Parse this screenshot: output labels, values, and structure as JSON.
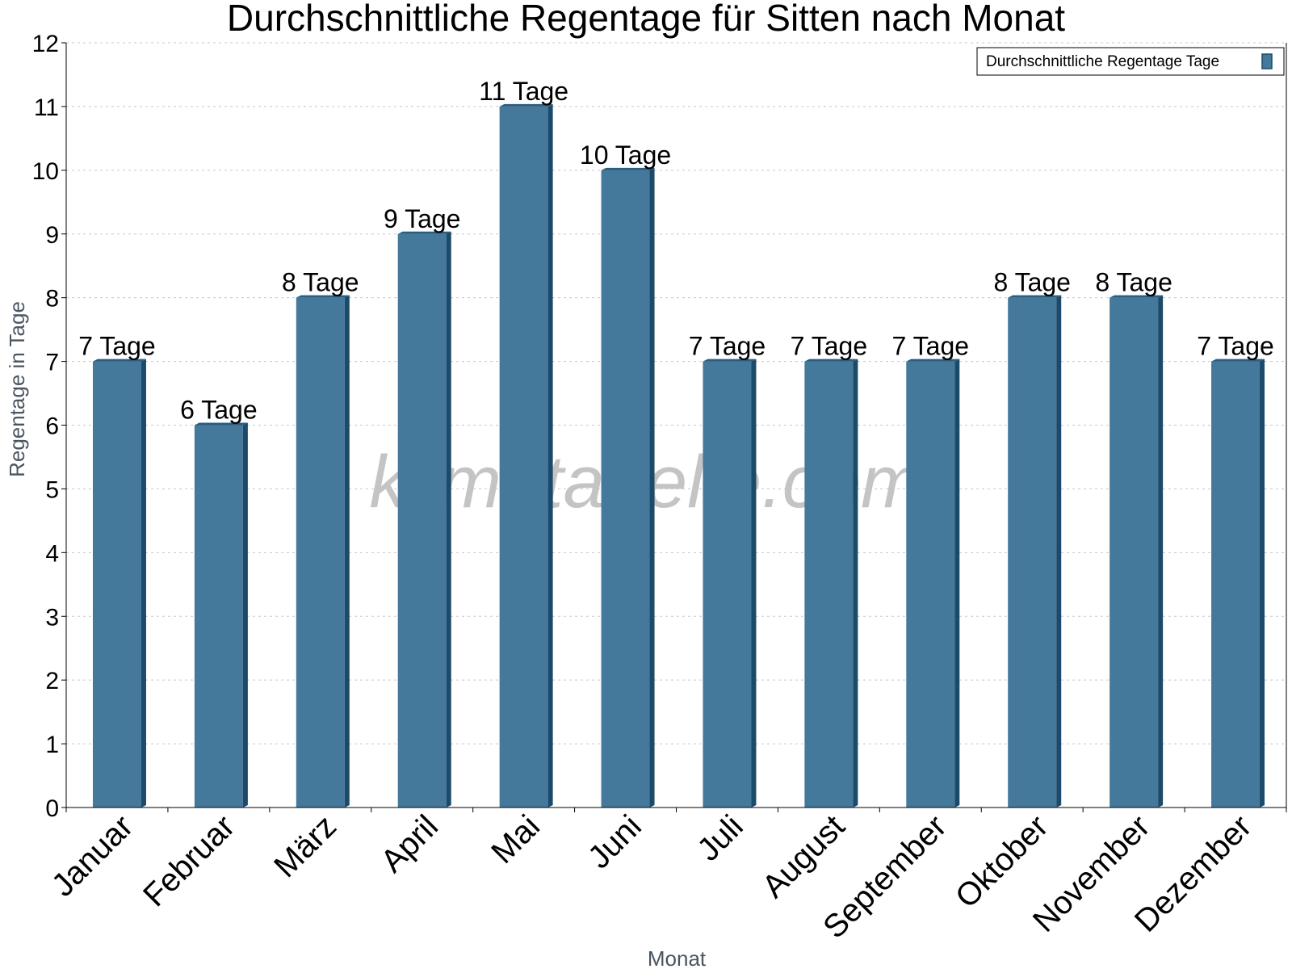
{
  "chart_data": {
    "type": "bar",
    "title": "Durchschnittliche Regentage für Sitten nach Monat",
    "xlabel": "Monat",
    "ylabel": "Regentage in Tage",
    "ylim": [
      0,
      12
    ],
    "yticks": [
      "0",
      "1",
      "2",
      "3",
      "4",
      "5",
      "6",
      "7",
      "8",
      "9",
      "10",
      "11",
      "12"
    ],
    "grid": true,
    "legend_position": "top-right",
    "categories": [
      "Januar",
      "Februar",
      "März",
      "April",
      "Mai",
      "Juni",
      "Juli",
      "August",
      "September",
      "Oktober",
      "November",
      "Dezember"
    ],
    "series": [
      {
        "name": "Durchschnittliche Regentage Tage",
        "values": [
          7,
          6,
          8,
          9,
          11,
          10,
          7,
          7,
          7,
          8,
          8,
          7
        ],
        "labels": [
          "7 Tage",
          "6 Tage",
          "8 Tage",
          "9 Tage",
          "11 Tage",
          "10 Tage",
          "7 Tage",
          "7 Tage",
          "7 Tage",
          "8 Tage",
          "8 Tage",
          "7 Tage"
        ],
        "color": "#44799b"
      }
    ],
    "watermark": "klimatabelle.com"
  },
  "colors": {
    "bar_front": "#44799b",
    "bar_side": "#1c4a6a",
    "bar_top": "#2a5d80",
    "grid": "#c8c8c8",
    "axis": "#000000"
  }
}
